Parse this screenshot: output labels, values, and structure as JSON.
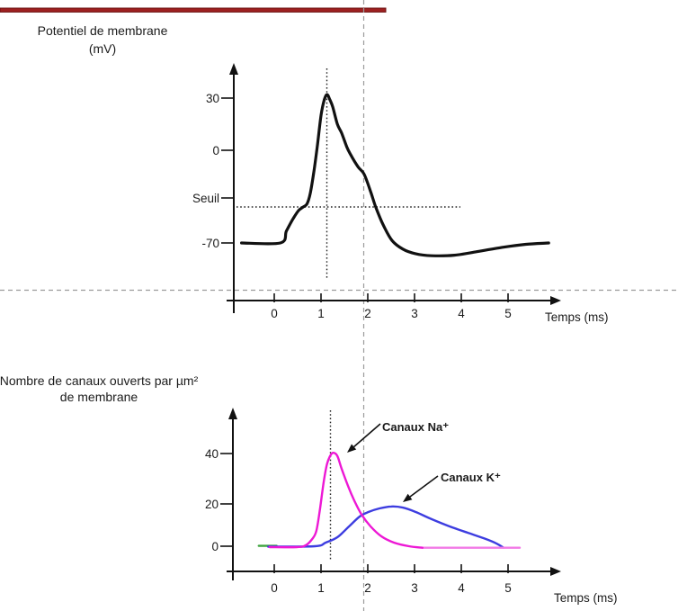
{
  "decorations": {
    "top_rule_color": "#9e2020",
    "guide_color": "#9b9b9b",
    "gray_dashed_guides_time_ms": 2
  },
  "chart_data": [
    {
      "type": "line",
      "title": "Potentiel de membrane",
      "title_unit": "(mV)",
      "xlabel": "Temps (ms)",
      "x_ticks": [
        "0",
        "1",
        "2",
        "3",
        "4",
        "5"
      ],
      "y_ticks": [
        "30",
        "0",
        "Seuil",
        "-70"
      ],
      "x_range_ms": [
        -0.8,
        6.0
      ],
      "resting_potential_mV": -70,
      "threshold_label": "Seuil",
      "threshold_mV": -55,
      "peak_mV": 32,
      "peak_time_ms": 1.1,
      "hyperpolarization_min_mV": -78,
      "annotations": {
        "dotted_vline_at_peak_ms": 1.1,
        "dotted_threshold_hline_mV": -55,
        "gray_dashed_vline_ms": 2
      },
      "series": [
        {
          "name": "Potentiel de membrane",
          "color": "#111111",
          "points_ms_mV": [
            [
              -0.7,
              -70
            ],
            [
              0.13,
              -70
            ],
            [
              0.26,
              -65
            ],
            [
              0.4,
              -60
            ],
            [
              0.52,
              -56.5
            ],
            [
              0.62,
              -55
            ],
            [
              0.7,
              -52
            ],
            [
              0.77,
              -42
            ],
            [
              0.85,
              -20
            ],
            [
              0.92,
              2
            ],
            [
              1.0,
              20
            ],
            [
              1.07,
              29
            ],
            [
              1.13,
              32
            ],
            [
              1.19,
              29
            ],
            [
              1.25,
              25
            ],
            [
              1.35,
              15
            ],
            [
              1.44,
              10
            ],
            [
              1.55,
              2
            ],
            [
              1.63,
              -4
            ],
            [
              1.79,
              -16
            ],
            [
              1.92,
              -23
            ],
            [
              2.06,
              -40
            ],
            [
              2.17,
              -55
            ],
            [
              2.33,
              -62.5
            ],
            [
              2.52,
              -69
            ],
            [
              2.75,
              -74
            ],
            [
              3.02,
              -77
            ],
            [
              3.37,
              -78.3
            ],
            [
              3.85,
              -78
            ],
            [
              4.33,
              -75.7
            ],
            [
              4.87,
              -72.9
            ],
            [
              5.38,
              -70.9
            ],
            [
              5.87,
              -70
            ]
          ]
        }
      ]
    },
    {
      "type": "line",
      "title": "Nombre de canaux ouverts par µm²",
      "title_line2": "de membrane",
      "xlabel": "Temps (ms)",
      "x_ticks": [
        "0",
        "1",
        "2",
        "3",
        "4",
        "5"
      ],
      "y_ticks": [
        "0",
        "20",
        "40"
      ],
      "legend": [
        {
          "label": "Canaux Na⁺",
          "color": "#ed18d5"
        },
        {
          "label": "Canaux K⁺",
          "color": "#2a2ad0"
        }
      ],
      "na_peak": {
        "time_ms": 1.27,
        "value": 40
      },
      "k_peak": {
        "time_ms": 2.5,
        "value": 19
      },
      "annotations": {
        "dotted_vline_at_na_peak_ms": 1.2,
        "gray_dashed_vline_ms": 2
      },
      "series": [
        {
          "name": "Canaux Na⁺",
          "color": "#ed18d5",
          "points_ms_n": [
            [
              -0.1,
              0
            ],
            [
              0.48,
              0
            ],
            [
              0.67,
              0.8
            ],
            [
              0.81,
              3.7
            ],
            [
              0.9,
              7.5
            ],
            [
              0.98,
              18
            ],
            [
              1.06,
              29
            ],
            [
              1.13,
              36
            ],
            [
              1.21,
              39.5
            ],
            [
              1.27,
              40.3
            ],
            [
              1.35,
              39
            ],
            [
              1.44,
              34
            ],
            [
              1.58,
              27
            ],
            [
              1.71,
              21.4
            ],
            [
              1.87,
              15
            ],
            [
              2.06,
              9.6
            ],
            [
              2.29,
              5
            ],
            [
              2.56,
              2.1
            ],
            [
              2.88,
              0.4
            ],
            [
              3.17,
              -0.3
            ]
          ]
        },
        {
          "name": "Canaux Na⁺ (fin de courbe)",
          "color": "#f279e6",
          "points_ms_n": [
            [
              3.17,
              -0.3
            ],
            [
              5.25,
              -0.3
            ]
          ]
        },
        {
          "name": "Canaux K⁺",
          "color": "#3d3de0",
          "points_ms_n": [
            [
              -0.13,
              0.2
            ],
            [
              0.87,
              0.4
            ],
            [
              1.1,
              2.1
            ],
            [
              1.35,
              4.6
            ],
            [
              1.6,
              9.6
            ],
            [
              1.83,
              14.2
            ],
            [
              2.02,
              16.3
            ],
            [
              2.25,
              17.9
            ],
            [
              2.5,
              18.8
            ],
            [
              2.75,
              18.3
            ],
            [
              3.02,
              16.3
            ],
            [
              3.37,
              12.9
            ],
            [
              3.75,
              9.6
            ],
            [
              4.13,
              6.7
            ],
            [
              4.52,
              3.8
            ],
            [
              4.75,
              1.7
            ],
            [
              4.9,
              -0.2
            ]
          ]
        },
        {
          "name": "segment vert (ligne de base)",
          "color": "#3fa43f",
          "points_ms_n": [
            [
              -0.33,
              0.6
            ],
            [
              0.05,
              0.6
            ]
          ]
        }
      ]
    }
  ]
}
